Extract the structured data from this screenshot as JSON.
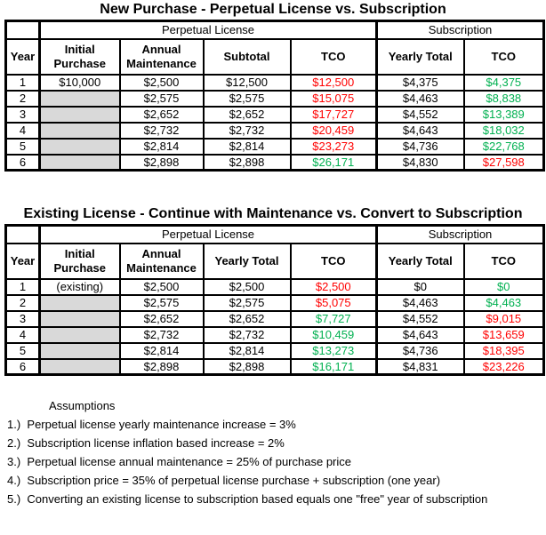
{
  "colors": {
    "red": "#FF0000",
    "green": "#00B050",
    "gray_fill": "#D9D9D9"
  },
  "tables": [
    {
      "title": "New Purchase - Perpetual License vs. Subscription",
      "group_headers": {
        "perpetual": "Perpetual License",
        "subscription": "Subscription"
      },
      "columns": [
        "Year",
        "Initial\nPurchase",
        "Annual\nMaintenance",
        "Subtotal",
        "TCO",
        "Yearly Total",
        "TCO"
      ],
      "rows": [
        {
          "year": "1",
          "initial": "$10,000",
          "maint": "$2,500",
          "total": "$12,500",
          "ptco": "$12,500",
          "ptco_color": "red",
          "syearly": "$4,375",
          "stco": "$4,375",
          "stco_color": "green"
        },
        {
          "year": "2",
          "initial": "",
          "maint": "$2,575",
          "total": "$2,575",
          "ptco": "$15,075",
          "ptco_color": "red",
          "syearly": "$4,463",
          "stco": "$8,838",
          "stco_color": "green"
        },
        {
          "year": "3",
          "initial": "",
          "maint": "$2,652",
          "total": "$2,652",
          "ptco": "$17,727",
          "ptco_color": "red",
          "syearly": "$4,552",
          "stco": "$13,389",
          "stco_color": "green"
        },
        {
          "year": "4",
          "initial": "",
          "maint": "$2,732",
          "total": "$2,732",
          "ptco": "$20,459",
          "ptco_color": "red",
          "syearly": "$4,643",
          "stco": "$18,032",
          "stco_color": "green"
        },
        {
          "year": "5",
          "initial": "",
          "maint": "$2,814",
          "total": "$2,814",
          "ptco": "$23,273",
          "ptco_color": "red",
          "syearly": "$4,736",
          "stco": "$22,768",
          "stco_color": "green"
        },
        {
          "year": "6",
          "initial": "",
          "maint": "$2,898",
          "total": "$2,898",
          "ptco": "$26,171",
          "ptco_color": "green",
          "syearly": "$4,830",
          "stco": "$27,598",
          "stco_color": "red"
        }
      ]
    },
    {
      "title": "Existing License - Continue with Maintenance vs. Convert to Subscription",
      "group_headers": {
        "perpetual": "Perpetual License",
        "subscription": "Subscription"
      },
      "columns": [
        "Year",
        "Initial\nPurchase",
        "Annual\nMaintenance",
        "Yearly Total",
        "TCO",
        "Yearly Total",
        "TCO"
      ],
      "rows": [
        {
          "year": "1",
          "initial": "(existing)",
          "maint": "$2,500",
          "total": "$2,500",
          "ptco": "$2,500",
          "ptco_color": "red",
          "syearly": "$0",
          "stco": "$0",
          "stco_color": "green"
        },
        {
          "year": "2",
          "initial": "",
          "maint": "$2,575",
          "total": "$2,575",
          "ptco": "$5,075",
          "ptco_color": "red",
          "syearly": "$4,463",
          "stco": "$4,463",
          "stco_color": "green"
        },
        {
          "year": "3",
          "initial": "",
          "maint": "$2,652",
          "total": "$2,652",
          "ptco": "$7,727",
          "ptco_color": "green",
          "syearly": "$4,552",
          "stco": "$9,015",
          "stco_color": "red"
        },
        {
          "year": "4",
          "initial": "",
          "maint": "$2,732",
          "total": "$2,732",
          "ptco": "$10,459",
          "ptco_color": "green",
          "syearly": "$4,643",
          "stco": "$13,659",
          "stco_color": "red"
        },
        {
          "year": "5",
          "initial": "",
          "maint": "$2,814",
          "total": "$2,814",
          "ptco": "$13,273",
          "ptco_color": "green",
          "syearly": "$4,736",
          "stco": "$18,395",
          "stco_color": "red"
        },
        {
          "year": "6",
          "initial": "",
          "maint": "$2,898",
          "total": "$2,898",
          "ptco": "$16,171",
          "ptco_color": "green",
          "syearly": "$4,831",
          "stco": "$23,226",
          "stco_color": "red"
        }
      ]
    }
  ],
  "assumptions": {
    "heading": "Assumptions",
    "items": [
      "1.)  Perpetual license yearly maintenance increase = 3%",
      "2.)  Subscription license inflation based increase = 2%",
      "3.)  Perpetual license annual maintenance = 25% of purchase price",
      "4.)  Subscription price = 35% of perpetual license purchase + subscription (one year)",
      "5.)  Converting an existing license to subscription based equals one \"free\" year of subscription"
    ]
  }
}
